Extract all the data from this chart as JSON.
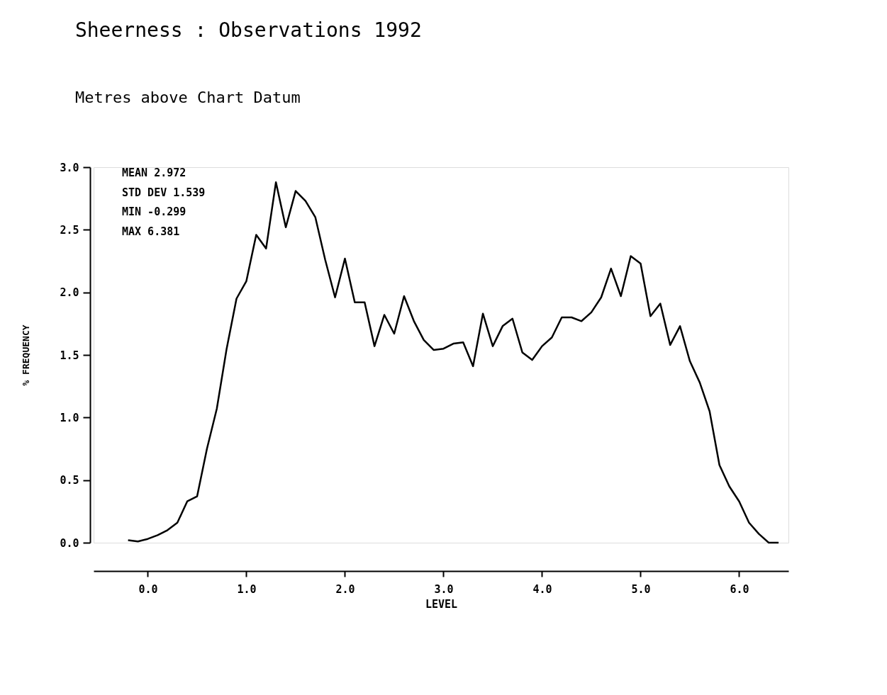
{
  "chart_data": {
    "type": "line",
    "title": "Sheerness : Observations 1992",
    "subtitle": "Metres above Chart Datum",
    "xlabel": "LEVEL",
    "ylabel": "% FREQUENCY",
    "x": [
      -0.2,
      -0.1,
      0.0,
      0.1,
      0.2,
      0.3,
      0.4,
      0.5,
      0.6,
      0.7,
      0.8,
      0.9,
      1.0,
      1.1,
      1.2,
      1.3,
      1.4,
      1.5,
      1.6,
      1.7,
      1.8,
      1.9,
      2.0,
      2.1,
      2.2,
      2.3,
      2.4,
      2.5,
      2.6,
      2.7,
      2.8,
      2.9,
      3.0,
      3.1,
      3.2,
      3.3,
      3.4,
      3.5,
      3.6,
      3.7,
      3.8,
      3.9,
      4.0,
      4.1,
      4.2,
      4.3,
      4.4,
      4.5,
      4.6,
      4.7,
      4.8,
      4.9,
      5.0,
      5.1,
      5.2,
      5.3,
      5.4,
      5.5,
      5.6,
      5.7,
      5.8,
      5.9,
      6.0,
      6.1,
      6.2,
      6.3,
      6.4
    ],
    "series": [
      {
        "color": "#000000",
        "values": [
          0.02,
          0.01,
          0.03,
          0.06,
          0.1,
          0.16,
          0.33,
          0.37,
          0.75,
          1.07,
          1.55,
          1.95,
          2.09,
          2.46,
          2.35,
          2.88,
          2.52,
          2.81,
          2.73,
          2.6,
          2.26,
          1.96,
          2.27,
          1.92,
          1.92,
          1.57,
          1.82,
          1.67,
          1.97,
          1.77,
          1.62,
          1.54,
          1.55,
          1.59,
          1.6,
          1.41,
          1.83,
          1.57,
          1.73,
          1.79,
          1.52,
          1.46,
          1.57,
          1.64,
          1.8,
          1.8,
          1.77,
          1.84,
          1.96,
          2.19,
          1.97,
          2.29,
          2.23,
          1.81,
          1.91,
          1.58,
          1.73,
          1.45,
          1.28,
          1.05,
          0.62,
          0.45,
          0.33,
          0.16,
          0.07,
          0.0,
          0.0
        ]
      }
    ],
    "xlim": [
      -0.55,
      6.5
    ],
    "xticks": [
      {
        "value": 0,
        "label": "0.0"
      },
      {
        "value": 1,
        "label": "1.0"
      },
      {
        "value": 2,
        "label": "2.0"
      },
      {
        "value": 3,
        "label": "3.0"
      },
      {
        "value": 4,
        "label": "4.0"
      },
      {
        "value": 5,
        "label": "5.0"
      },
      {
        "value": 6,
        "label": "6.0"
      }
    ],
    "ylim": [
      0,
      3
    ],
    "yticks": [
      {
        "value": 0,
        "label": "0.0"
      },
      {
        "value": 0.5,
        "label": "0.5"
      },
      {
        "value": 1,
        "label": "1.0"
      },
      {
        "value": 1.5,
        "label": "1.5"
      },
      {
        "value": 2,
        "label": "2.0"
      },
      {
        "value": 2.5,
        "label": "2.5"
      },
      {
        "value": 3,
        "label": "3.0"
      }
    ],
    "annotations": [
      "MEAN 2.972",
      "STD DEV 1.539",
      "MIN -0.299",
      "MAX 6.381"
    ],
    "grid": false,
    "marker": "none",
    "line_style": "solid"
  }
}
